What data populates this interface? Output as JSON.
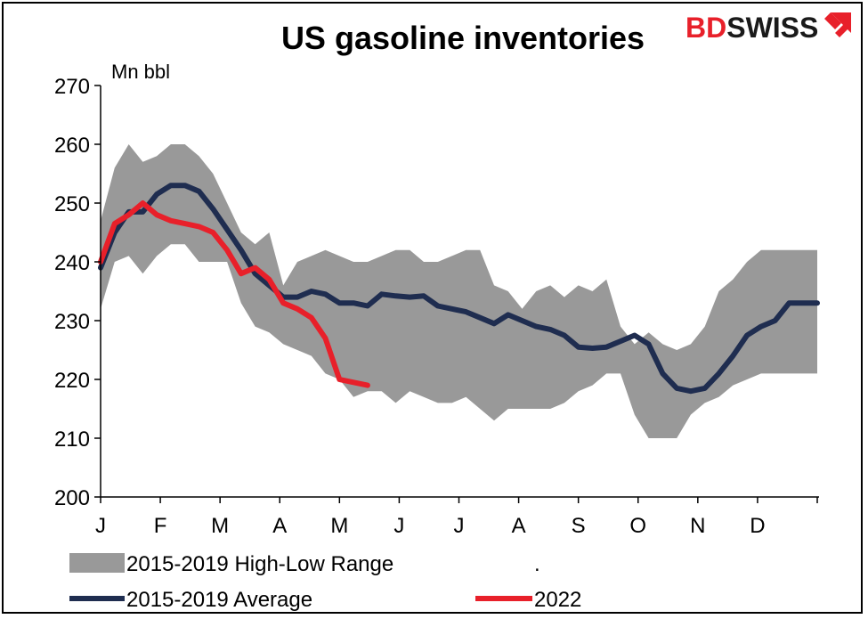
{
  "chart_data": {
    "type": "area",
    "title": "US gasoline inventories",
    "unit_label": "Mn bbl",
    "ylim": [
      200,
      270
    ],
    "y_ticks": [
      200,
      210,
      220,
      230,
      240,
      250,
      260,
      270
    ],
    "x_tick_labels": [
      "J",
      "F",
      "M",
      "A",
      "M",
      "J",
      "J",
      "A",
      "S",
      "O",
      "N",
      "D"
    ],
    "weeks_per_year": 52,
    "grid": false,
    "legend_position": "bottom",
    "legend_dot": ".",
    "series": [
      {
        "name": "2015-2019 High-Low Range",
        "type": "band",
        "color": "#999999",
        "high": [
          247,
          256,
          260,
          257,
          258,
          260,
          260,
          258,
          255,
          250,
          245,
          243,
          245,
          236,
          240,
          241,
          242,
          241,
          240,
          240,
          241,
          242,
          242,
          240,
          240,
          241,
          242,
          242,
          236,
          235,
          232,
          235,
          236,
          234,
          236,
          235,
          237,
          229,
          226,
          228,
          226,
          225,
          226,
          229,
          235,
          237,
          240,
          242,
          242,
          242,
          242,
          242
        ],
        "low": [
          232,
          240,
          241,
          238,
          241,
          243,
          243,
          240,
          240,
          240,
          233,
          229,
          228,
          226,
          225,
          224,
          221,
          220,
          217,
          218,
          218,
          216,
          218,
          217,
          216,
          216,
          217,
          215,
          213,
          215,
          215,
          215,
          215,
          216,
          218,
          219,
          221,
          221,
          214,
          210,
          210,
          210,
          214,
          216,
          217,
          219,
          220,
          221,
          221,
          221,
          221,
          221
        ]
      },
      {
        "name": "2015-2019 Average",
        "type": "line",
        "color": "#1f2d50",
        "values": [
          239,
          245,
          248.5,
          248.5,
          251.5,
          253,
          253,
          252,
          249,
          245.5,
          242,
          238,
          236,
          234,
          234,
          235,
          234.5,
          233,
          233,
          232.5,
          234.5,
          234.2,
          234,
          234.2,
          232.5,
          232,
          231.5,
          230.5,
          229.5,
          231,
          230,
          229,
          228.5,
          227.5,
          225.5,
          225.3,
          225.5,
          226.5,
          227.5,
          226,
          221,
          218.5,
          218,
          218.5,
          221,
          224,
          227.5,
          229,
          230,
          233,
          233,
          233
        ]
      },
      {
        "name": "2022",
        "type": "line",
        "color": "#e8202a",
        "values": [
          240,
          246.5,
          248,
          250,
          248,
          247,
          246.5,
          246,
          245,
          242,
          238,
          239,
          237,
          233,
          232,
          230.5,
          227,
          220,
          219.5,
          219
        ]
      }
    ]
  },
  "logo": {
    "text_bd": "BD",
    "text_swiss": "SWISS",
    "color_bd": "#e8202a",
    "color_swiss": "#1a1a1a"
  }
}
